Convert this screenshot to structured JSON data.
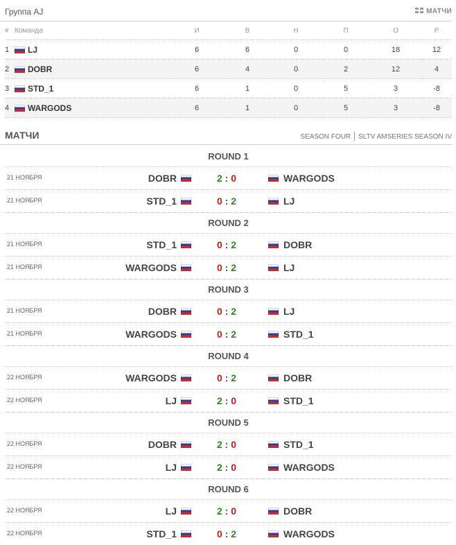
{
  "group": {
    "title": "Группа AJ",
    "matches_link": "МАТЧИ",
    "link_icon": "grid-icon"
  },
  "standings": {
    "headers": {
      "pos": "#",
      "team": "Команда",
      "games": "И",
      "wins": "В",
      "draws": "Н",
      "losses": "П",
      "points": "О",
      "diff": "Р"
    },
    "rows": [
      {
        "pos": "1",
        "team": "LJ",
        "flag": "flag-russia",
        "games": "6",
        "wins": "6",
        "draws": "0",
        "losses": "0",
        "points": "18",
        "diff": "12"
      },
      {
        "pos": "2",
        "team": "DOBR",
        "flag": "flag-russia",
        "games": "6",
        "wins": "4",
        "draws": "0",
        "losses": "2",
        "points": "12",
        "diff": "4"
      },
      {
        "pos": "3",
        "team": "STD_1",
        "flag": "flag-russia",
        "games": "6",
        "wins": "1",
        "draws": "0",
        "losses": "5",
        "points": "3",
        "diff": "-8"
      },
      {
        "pos": "4",
        "team": "WARGODS",
        "flag": "flag-russia",
        "games": "6",
        "wins": "1",
        "draws": "0",
        "losses": "5",
        "points": "3",
        "diff": "-8"
      }
    ]
  },
  "matches": {
    "title": "МАТЧИ",
    "tabs": [
      "SEASON FOUR",
      "SLTV AMSERIES SEASON IV"
    ],
    "rounds": [
      {
        "name": "ROUND 1",
        "matches": [
          {
            "date": "21 НОЯБРЯ",
            "home": "DOBR",
            "home_score": "2",
            "away_score": "0",
            "away": "WARGODS"
          },
          {
            "date": "21 НОЯБРЯ",
            "home": "STD_1",
            "home_score": "0",
            "away_score": "2",
            "away": "LJ"
          }
        ]
      },
      {
        "name": "ROUND 2",
        "matches": [
          {
            "date": "21 НОЯБРЯ",
            "home": "STD_1",
            "home_score": "0",
            "away_score": "2",
            "away": "DOBR"
          },
          {
            "date": "21 НОЯБРЯ",
            "home": "WARGODS",
            "home_score": "0",
            "away_score": "2",
            "away": "LJ"
          }
        ]
      },
      {
        "name": "ROUND 3",
        "matches": [
          {
            "date": "21 НОЯБРЯ",
            "home": "DOBR",
            "home_score": "0",
            "away_score": "2",
            "away": "LJ"
          },
          {
            "date": "21 НОЯБРЯ",
            "home": "WARGODS",
            "home_score": "0",
            "away_score": "2",
            "away": "STD_1"
          }
        ]
      },
      {
        "name": "ROUND 4",
        "matches": [
          {
            "date": "22 НОЯБРЯ",
            "home": "WARGODS",
            "home_score": "0",
            "away_score": "2",
            "away": "DOBR"
          },
          {
            "date": "22 НОЯБРЯ",
            "home": "LJ",
            "home_score": "2",
            "away_score": "0",
            "away": "STD_1"
          }
        ]
      },
      {
        "name": "ROUND 5",
        "matches": [
          {
            "date": "22 НОЯБРЯ",
            "home": "DOBR",
            "home_score": "2",
            "away_score": "0",
            "away": "STD_1"
          },
          {
            "date": "22 НОЯБРЯ",
            "home": "LJ",
            "home_score": "2",
            "away_score": "0",
            "away": "WARGODS"
          }
        ]
      },
      {
        "name": "ROUND 6",
        "matches": [
          {
            "date": "22 НОЯБРЯ",
            "home": "LJ",
            "home_score": "2",
            "away_score": "0",
            "away": "DOBR"
          },
          {
            "date": "22 НОЯБРЯ",
            "home": "STD_1",
            "home_score": "0",
            "away_score": "2",
            "away": "WARGODS"
          }
        ]
      }
    ]
  },
  "colors": {
    "win": "#2a8a1a",
    "loss": "#b3231b"
  }
}
